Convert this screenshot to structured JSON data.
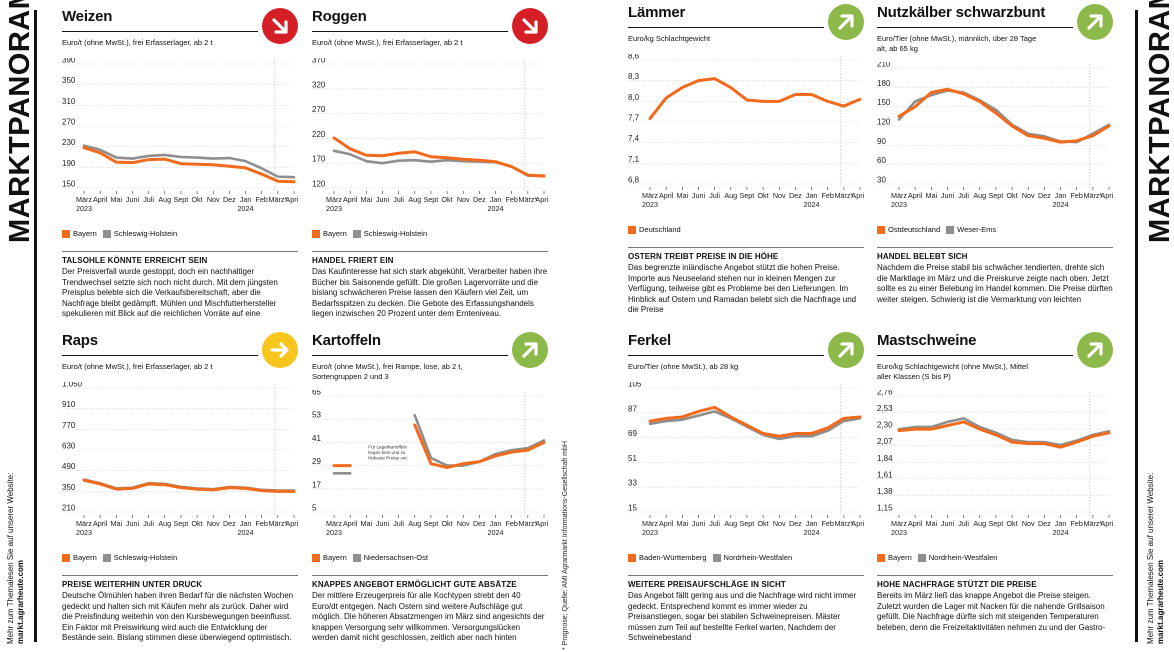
{
  "side_title": "MARKTPANORAMA",
  "side_footer": {
    "line1": "Mehr zum Themalesen Sie auf unserer Website:",
    "line2": "markt.agrarheute.com"
  },
  "source_note": "* Prognose; Quelle: AMI Agrarmarkt Informations-Gesellschaft mbH",
  "colors": {
    "orange": "#f26a1b",
    "gray": "#8e8e8e",
    "red": "#d51f26",
    "yellow": "#f7c51c",
    "green": "#8db84a"
  },
  "x_labels": [
    "März 2023",
    "April",
    "Mai",
    "Juni",
    "Juli",
    "Aug",
    "Sept",
    "Okt",
    "Nov",
    "Dez",
    "Jan 2024",
    "Feb",
    "März*",
    "April*"
  ],
  "panels": [
    {
      "id": "weizen",
      "title": "Weizen",
      "trend": "down",
      "trend_color": "red",
      "unit": "Euro/t (ohne MwSt.), frei Erfasserlager, ab 2 t",
      "legend": [
        "Bayern",
        "Schleswig-Holstein"
      ],
      "subhead": "TALSOHLE KÖNNTE ERREICHT SEIN",
      "body": "Der Preisverfall wurde gestoppt, doch ein nachhaltiger Trendwechsel setzte sich noch nicht durch. Mit dem jüngsten Preisplus belebte sich die Verkaufsbereitschaft, aber die Nachfrage bleibt gedämpft. Mühlen und Mischfutterhersteller spekulieren mit Blick auf die reichlichen Vorräte auf eine Preisknick vor der Ernte.",
      "chart_data": {
        "type": "line",
        "y_ticks": [
          "390",
          "350",
          "310",
          "270",
          "230",
          "190",
          "150"
        ],
        "ylim": [
          150,
          390
        ],
        "series": [
          {
            "name": "Bayern",
            "color": "orange",
            "values": [
              228,
              218,
              200,
              199,
              205,
              206,
              197,
              196,
              195,
              192,
              189,
              177,
              163,
              162
            ]
          },
          {
            "name": "Schleswig-Holstein",
            "color": "gray",
            "values": [
              232,
              224,
              209,
              207,
              212,
              214,
              210,
              209,
              207,
              208,
              202,
              188,
              172,
              171
            ]
          }
        ]
      }
    },
    {
      "id": "roggen",
      "title": "Roggen",
      "trend": "down",
      "trend_color": "red",
      "unit": "Euro/t (ohne MwSt.), frei Erfasserlager, ab 2 t",
      "legend": [
        "Bayern",
        "Schleswig-Holstein"
      ],
      "subhead": "HANDEL FRIERT EIN",
      "body": "Das Kaufinteresse hat sich stark abgekühlt, Verarbeiter haben ihre Bücher bis Saisonende gefüllt. Die großen Lagervorräte und die bislang schwächeren Preise lassen den Käufern viel Zeit, um Bedarfsspitzen zu decken. Die Gebote des Erfassungshandels liegen inzwischen 20 Prozent unter dem Ernteniveau.",
      "chart_data": {
        "type": "line",
        "y_ticks": [
          "370",
          "320",
          "270",
          "220",
          "170",
          "120"
        ],
        "ylim": [
          120,
          370
        ],
        "series": [
          {
            "name": "Bayern",
            "color": "orange",
            "values": [
              221,
              199,
              186,
              185,
              190,
              193,
              183,
              181,
              178,
              176,
              173,
              163,
              146,
              144
            ]
          },
          {
            "name": "Schleswig-Holstein",
            "color": "gray",
            "values": [
              195,
              188,
              174,
              170,
              175,
              176,
              173,
              176,
              174,
              173,
              172,
              163,
              145,
              145
            ]
          }
        ]
      }
    },
    {
      "id": "laemmer",
      "title": "Lämmer",
      "trend": "up",
      "trend_color": "green",
      "unit": "Euro/kg Schlachtgewicht",
      "legend": [
        "Deutschland"
      ],
      "subhead": "OSTERN TREIBT PREISE IN DIE HÖHE",
      "body": "Das begrenzte inländische Angebot stützt die hohen Preise. Importe aus Neuseeland stehen nur in kleinen Mengen zur Verfügung, teilweise gibt es Probleme bei den Lieferungen. Im Hinblick auf Ostern und Ramadan belebt sich die Nachfrage und die Preise",
      "chart_data": {
        "type": "line",
        "y_ticks": [
          "8,6",
          "8,3",
          "8,0",
          "7,7",
          "7,4",
          "7,1",
          "6,8"
        ],
        "ylim": [
          6.8,
          8.6
        ],
        "series": [
          {
            "name": "Deutschland",
            "color": "orange",
            "values": [
              7.75,
              8.05,
              8.2,
              8.3,
              8.33,
              8.2,
              8.02,
              8.0,
              8.0,
              8.1,
              8.1,
              8.0,
              7.93,
              8.03
            ]
          }
        ]
      }
    },
    {
      "id": "nutzkaelber",
      "title": "Nutzkälber schwarzbunt",
      "trend": "up",
      "trend_color": "green",
      "unit": "Euro/Tier (ohne MwSt.), männlich, über 28 Tage alt, ab 65 kg",
      "legend": [
        "Ostdeutschland",
        "Weser-Ems"
      ],
      "subhead": "HANDEL BELEBT SICH",
      "body": "Nachdem die Preise stabil bis schwächer tendierten, drehte sich die Marktlage im März und die Preiskurve zeigte nach oben. Jetzt sollte es zu einer Belebung im Handel kommen. Die Preise dürften weiter steigen. Schwierig ist die Vermarktung von leichten",
      "chart_data": {
        "type": "line",
        "y_ticks": [
          "210",
          "180",
          "150",
          "120",
          "90",
          "60",
          "30"
        ],
        "ylim": [
          30,
          210
        ],
        "series": [
          {
            "name": "Ostdeutschland",
            "color": "orange",
            "values": [
              135,
              150,
              172,
              177,
              170,
              158,
              140,
              120,
              105,
              101,
              95,
              97,
              105,
              120
            ]
          },
          {
            "name": "Weser-Ems",
            "color": "gray",
            "values": [
              130,
              158,
              168,
              175,
              172,
              160,
              145,
              122,
              108,
              104,
              96,
              95,
              108,
              122
            ]
          }
        ]
      }
    },
    {
      "id": "raps",
      "title": "Raps",
      "trend": "right",
      "trend_color": "yellow",
      "unit": "Euro/t (ohne MwSt.), frei Erfasserlager, ab 2 t",
      "legend": [
        "Bayern",
        "Schleswig-Holstein"
      ],
      "subhead": "PREISE WEITERHIN UNTER DRUCK",
      "body": "Deutsche Ölmühlen haben ihren Bedarf für die nächsten Wochen gedeckt und halten sich mit Käufen mehr als zurück. Daher wird die Preisfindung weiterhin von den Kursbewegungen beeinflusst. Ein Faktor mit Preiswirkung wird auch die Entwicklung der Bestände sein. Bislang stimmen diese überwiegend optimistisch.",
      "chart_data": {
        "type": "line",
        "y_ticks": [
          "1.050",
          "910",
          "770",
          "630",
          "490",
          "350",
          "210"
        ],
        "ylim": [
          210,
          1050
        ],
        "series": [
          {
            "name": "Bayern",
            "color": "orange",
            "values": [
              425,
              400,
              365,
              370,
              400,
              395,
              375,
              365,
              360,
              375,
              370,
              355,
              350,
              350
            ]
          },
          {
            "name": "Schleswig-Holstein",
            "color": "gray",
            "values": [
              430,
              405,
              370,
              375,
              405,
              400,
              380,
              370,
              365,
              380,
              375,
              360,
              355,
              355
            ]
          }
        ]
      }
    },
    {
      "id": "kartoffeln",
      "title": "Kartoffeln",
      "trend": "up",
      "trend_color": "green",
      "unit": "Euro/t (ohne MwSt.), frei Rampe, lose, ab 2 t, Sortengruppen 2 und 3",
      "legend": [
        "Bayern",
        "Niedersachsen-Ost"
      ],
      "annotation": "Für Lagerkartoffeln liegen kein und zu früheste Preise vor.",
      "subhead": "KNAPPES ANGEBOT ERMÖGLICHT GUTE ABSÄTZE",
      "body": "Der mittlere Erzeugerpreis für alle Kochtypen strebt den 40 Euro/dt entgegen. Nach Ostern sind weitere Aufschläge gut möglich. Die höheren Absatzmengen im März sind angesichts der knappen Versorgung sehr willkommen. Versorgungslücken werden damit nicht geschlossen, zeitlich aber nach hinten geschoben.",
      "chart_data": {
        "type": "line",
        "y_ticks": [
          "65",
          "53",
          "41",
          "29",
          "17",
          "5"
        ],
        "ylim": [
          5,
          65
        ],
        "series": [
          {
            "name": "Bayern",
            "color": "orange",
            "values": [
              29,
              29,
              null,
              null,
              null,
              50,
              30,
              28,
              30,
              31,
              34,
              36,
              37,
              41
            ]
          },
          {
            "name": "Niedersachsen-Ost",
            "color": "gray",
            "values": [
              25,
              25,
              null,
              null,
              null,
              55,
              33,
              29,
              29,
              31,
              35,
              37,
              38,
              42
            ]
          }
        ]
      }
    },
    {
      "id": "ferkel",
      "title": "Ferkel",
      "trend": "up",
      "trend_color": "green",
      "unit": "Euro/Tier (ohne MwSt.), ab 28 kg",
      "legend": [
        "Baden-Württemberg",
        "Nordrhein-Westfalen"
      ],
      "subhead": "WEITERE PREISAUFSCHLÄGE IN SICHT",
      "body": "Das Angebot fällt gering aus und die Nachfrage wird nicht immer gedeckt. Entsprechend kommt es immer wieder zu Preisanstiegen, sogar bei stabilen Schweinepreisen. Mäster müssen zum Teil auf bestellte Ferkel warten. Nachdem der Schweinebestand",
      "chart_data": {
        "type": "line",
        "y_ticks": [
          "105",
          "87",
          "69",
          "51",
          "33",
          "15"
        ],
        "ylim": [
          15,
          105
        ],
        "series": [
          {
            "name": "Baden-Württemberg",
            "color": "orange",
            "values": [
              81,
              83,
              84,
              88,
              91,
              84,
              78,
              72,
              70,
              72,
              72,
              76,
              83,
              84
            ]
          },
          {
            "name": "Nordrhein-Westfalen",
            "color": "gray",
            "values": [
              79,
              81,
              82,
              85,
              88,
              83,
              77,
              71,
              68,
              70,
              70,
              74,
              81,
              83
            ]
          }
        ]
      }
    },
    {
      "id": "mastschweine",
      "title": "Mastschweine",
      "trend": "up",
      "trend_color": "green",
      "unit": "Euro/kg Schlachtgewicht (ohne MwSt.), Mittel aller Klassen (S bis P)",
      "legend": [
        "Bayern",
        "Nordrhein-Westfalen"
      ],
      "subhead": "HOHE NACHFRAGE STÜTZT DIE PREISE",
      "body": "Bereits im März ließ das knappe Angebot die Preise steigen. Zuletzt wurden die Lager mit Nacken für die nahende Grillsaison gefüllt. Die Nachfrage dürfte sich mit steigenden Temperaturen beleben, denn die Freizeitaktivitäten nehmen zu und der Gastro-",
      "chart_data": {
        "type": "line",
        "y_ticks": [
          "2,76",
          "2,53",
          "2,30",
          "2,07",
          "1,84",
          "1,61",
          "1,38",
          "1,15"
        ],
        "ylim": [
          1.15,
          2.76
        ],
        "series": [
          {
            "name": "Bayern",
            "color": "orange",
            "values": [
              2.28,
              2.3,
              2.3,
              2.35,
              2.4,
              2.3,
              2.22,
              2.12,
              2.1,
              2.1,
              2.05,
              2.12,
              2.2,
              2.25
            ]
          },
          {
            "name": "Nordrhein-Westfalen",
            "color": "gray",
            "values": [
              2.3,
              2.33,
              2.33,
              2.4,
              2.45,
              2.33,
              2.25,
              2.15,
              2.12,
              2.12,
              2.08,
              2.14,
              2.22,
              2.27
            ]
          }
        ]
      }
    }
  ]
}
